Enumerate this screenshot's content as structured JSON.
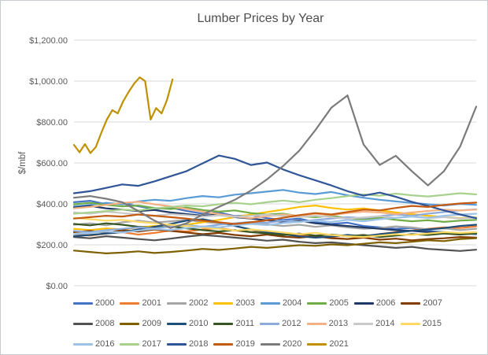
{
  "frame": {
    "background": "#ffffff",
    "border_color": "#c7cace"
  },
  "chart_data": {
    "type": "line",
    "title": "Lumber Prices by Year",
    "xlabel": "",
    "ylabel": "$/mbf",
    "ylim": [
      0,
      1200
    ],
    "grid": true,
    "legend_position": "bottom",
    "x_axis_labels": "none (unlabeled time axis, Jan-Dec within each year)",
    "yticks": [
      {
        "value": 0,
        "label": "$0.00"
      },
      {
        "value": 200,
        "label": "$200.00"
      },
      {
        "value": 400,
        "label": "$400.00"
      },
      {
        "value": 600,
        "label": "$600.00"
      },
      {
        "value": 800,
        "label": "$800.00"
      },
      {
        "value": 1000,
        "label": "$1,000.00"
      },
      {
        "value": 1200,
        "label": "$1,200.00"
      }
    ],
    "colors": {
      "title": "#4d4d4d",
      "tick_labels": "#595959",
      "axis_title": "#595959",
      "gridline": "#d9d9d9",
      "legend_text": "#595959"
    },
    "series": [
      {
        "name": "2000",
        "color": "#4472C4",
        "values": [
          408,
          415,
          398,
          402,
          388,
          375,
          382,
          365,
          352,
          358,
          340,
          345,
          330,
          322,
          328,
          310,
          302,
          308,
          292,
          285,
          278,
          282,
          268,
          262,
          255,
          252
        ]
      },
      {
        "name": "2001",
        "color": "#ED7D31",
        "values": [
          252,
          245,
          255,
          262,
          250,
          258,
          270,
          265,
          275,
          282,
          270,
          262,
          268,
          258,
          250,
          242,
          235,
          228,
          240,
          252,
          262,
          270,
          278,
          285,
          282,
          290
        ]
      },
      {
        "name": "2002",
        "color": "#A5A5A5",
        "values": [
          298,
          305,
          295,
          310,
          318,
          308,
          315,
          322,
          312,
          305,
          298,
          308,
          300,
          292,
          298,
          288,
          295,
          285,
          278,
          282,
          290,
          285,
          275,
          280,
          272,
          278
        ]
      },
      {
        "name": "2003",
        "color": "#FFC000",
        "values": [
          278,
          272,
          280,
          275,
          285,
          292,
          288,
          298,
          310,
          322,
          335,
          348,
          360,
          372,
          385,
          392,
          380,
          372,
          378,
          368,
          358,
          350,
          342,
          336,
          330,
          334
        ]
      },
      {
        "name": "2004",
        "color": "#5B9BD5",
        "values": [
          388,
          395,
          405,
          398,
          412,
          420,
          415,
          428,
          438,
          432,
          445,
          452,
          460,
          468,
          455,
          448,
          458,
          442,
          430,
          420,
          412,
          405,
          398,
          392,
          400,
          395
        ]
      },
      {
        "name": "2005",
        "color": "#70AD47",
        "values": [
          398,
          405,
          395,
          388,
          392,
          380,
          375,
          382,
          370,
          362,
          368,
          355,
          348,
          352,
          340,
          335,
          342,
          330,
          325,
          332,
          322,
          315,
          320,
          312,
          318,
          322
        ]
      },
      {
        "name": "2006",
        "color": "#203864",
        "values": [
          382,
          390,
          378,
          372,
          365,
          370,
          358,
          350,
          342,
          348,
          335,
          328,
          320,
          312,
          318,
          305,
          298,
          292,
          285,
          278,
          272,
          268,
          262,
          258,
          252,
          256
        ]
      },
      {
        "name": "2007",
        "color": "#833C00",
        "values": [
          262,
          268,
          258,
          272,
          265,
          275,
          268,
          260,
          252,
          258,
          248,
          242,
          250,
          240,
          235,
          242,
          232,
          228,
          235,
          225,
          230,
          222,
          228,
          232,
          238,
          235
        ]
      },
      {
        "name": "2008",
        "color": "#525252",
        "values": [
          238,
          232,
          242,
          235,
          228,
          222,
          230,
          240,
          248,
          242,
          235,
          228,
          220,
          225,
          215,
          208,
          212,
          205,
          198,
          192,
          185,
          190,
          180,
          175,
          170,
          176
        ]
      },
      {
        "name": "2009",
        "color": "#7F6000",
        "values": [
          172,
          165,
          158,
          162,
          168,
          160,
          165,
          172,
          180,
          175,
          182,
          190,
          185,
          192,
          198,
          195,
          202,
          198,
          205,
          212,
          208,
          215,
          222,
          218,
          228,
          232
        ]
      },
      {
        "name": "2010",
        "color": "#1F4E79",
        "values": [
          242,
          248,
          255,
          262,
          275,
          288,
          302,
          318,
          325,
          310,
          292,
          275,
          262,
          252,
          242,
          235,
          240,
          248,
          242,
          252,
          260,
          268,
          275,
          282,
          292,
          298
        ]
      },
      {
        "name": "2011",
        "color": "#375623",
        "values": [
          302,
          295,
          305,
          298,
          288,
          282,
          290,
          280,
          272,
          265,
          272,
          262,
          255,
          248,
          255,
          245,
          250,
          242,
          248,
          238,
          245,
          252,
          248,
          255,
          250,
          256
        ]
      },
      {
        "name": "2012",
        "color": "#8EAADB",
        "values": [
          268,
          262,
          272,
          278,
          285,
          280,
          290,
          296,
          288,
          298,
          305,
          312,
          308,
          318,
          312,
          322,
          328,
          335,
          330,
          340,
          348,
          342,
          352,
          360,
          368,
          374
        ]
      },
      {
        "name": "2013",
        "color": "#F4B183",
        "values": [
          378,
          385,
          395,
          405,
          410,
          398,
          388,
          375,
          362,
          350,
          338,
          330,
          340,
          348,
          342,
          352,
          345,
          355,
          362,
          358,
          350,
          358,
          365,
          372,
          368,
          372
        ]
      },
      {
        "name": "2014",
        "color": "#C9C9C9",
        "values": [
          358,
          352,
          362,
          355,
          348,
          342,
          350,
          345,
          338,
          344,
          336,
          342,
          348,
          340,
          335,
          342,
          335,
          328,
          334,
          340,
          332,
          338,
          330,
          335,
          328,
          332
        ]
      },
      {
        "name": "2015",
        "color": "#FFD966",
        "values": [
          332,
          325,
          318,
          322,
          312,
          305,
          298,
          292,
          285,
          278,
          270,
          275,
          268,
          260,
          252,
          258,
          248,
          242,
          238,
          245,
          252,
          248,
          255,
          262,
          258,
          262
        ]
      },
      {
        "name": "2016",
        "color": "#9DC3E6",
        "values": [
          252,
          258,
          265,
          260,
          270,
          278,
          272,
          282,
          290,
          285,
          295,
          302,
          296,
          306,
          312,
          318,
          312,
          322,
          315,
          325,
          332,
          338,
          332,
          342,
          348,
          352
        ]
      },
      {
        "name": "2017",
        "color": "#A9D18E",
        "values": [
          352,
          358,
          365,
          372,
          368,
          378,
          385,
          392,
          388,
          398,
          405,
          398,
          408,
          416,
          408,
          420,
          428,
          438,
          446,
          440,
          450,
          442,
          436,
          444,
          452,
          446
        ]
      },
      {
        "name": "2018",
        "color": "#2F5597",
        "values": [
          452,
          462,
          478,
          495,
          488,
          510,
          535,
          560,
          598,
          636,
          620,
          590,
          602,
          568,
          540,
          515,
          490,
          462,
          440,
          455,
          435,
          410,
          390,
          368,
          348,
          330
        ]
      },
      {
        "name": "2019",
        "color": "#C55A11",
        "values": [
          328,
          335,
          342,
          338,
          348,
          342,
          335,
          328,
          318,
          310,
          302,
          310,
          320,
          332,
          345,
          355,
          348,
          360,
          372,
          368,
          380,
          390,
          385,
          395,
          402,
          406
        ]
      },
      {
        "name": "2020",
        "color": "#7B7B7B",
        "values": [
          430,
          438,
          425,
          408,
          365,
          318,
          282,
          305,
          348,
          385,
          420,
          465,
          520,
          585,
          660,
          760,
          870,
          930,
          690,
          590,
          635,
          560,
          490,
          560,
          680,
          875
        ]
      },
      {
        "name": "2021",
        "color": "#BF9000",
        "span": 0.245,
        "values": [
          688,
          652,
          692,
          648,
          678,
          748,
          812,
          858,
          842,
          902,
          948,
          988,
          1018,
          1000,
          812,
          868,
          842,
          908,
          1008
        ]
      }
    ]
  }
}
